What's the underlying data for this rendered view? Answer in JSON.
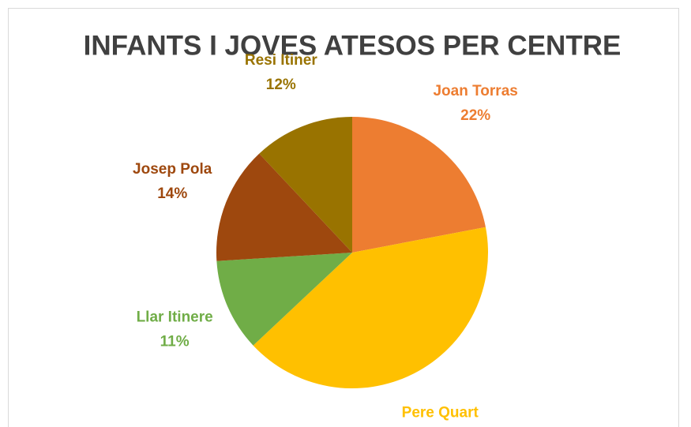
{
  "chart_data": {
    "type": "pie",
    "title": "INFANTS I JOVES ATESOS PER CENTRE",
    "categories": [
      "Joan Torras",
      "Pere Quart",
      "Llar Itinere",
      "Josep Pola",
      "Resi Itiner"
    ],
    "values": [
      22,
      41,
      11,
      14,
      12
    ],
    "value_labels": [
      "22%",
      "41%",
      "11%",
      "14%",
      "12%"
    ],
    "colors": [
      "#ED7D31",
      "#FFC000",
      "#70AD47",
      "#9E480E",
      "#997300"
    ]
  }
}
